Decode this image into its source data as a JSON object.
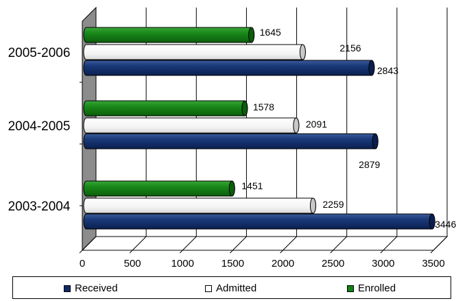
{
  "chart_data": {
    "type": "bar",
    "orientation": "horizontal",
    "style": "3d-cylinder",
    "categories": [
      "2003-2004",
      "2004-2005",
      "2005-2006"
    ],
    "series": [
      {
        "name": "Received",
        "values": [
          3446,
          2879,
          2843
        ],
        "color": "#0d2a66"
      },
      {
        "name": "Admitted",
        "values": [
          2259,
          2091,
          2156
        ],
        "color": "#ffffff"
      },
      {
        "name": "Enrolled",
        "values": [
          1451,
          1578,
          1645
        ],
        "color": "#138013"
      }
    ],
    "x_ticks": [
      "0",
      "500",
      "1000",
      "1500",
      "2000",
      "2500",
      "3000",
      "3500"
    ],
    "xlim": [
      0,
      3500
    ],
    "grid": true,
    "legend_position": "bottom"
  }
}
